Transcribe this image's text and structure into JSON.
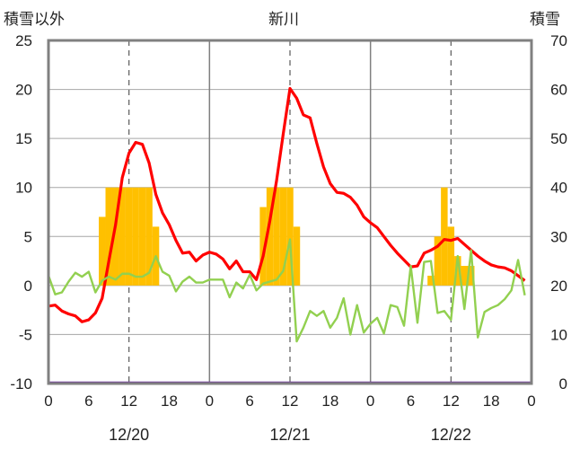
{
  "chart_data": {
    "type": "bar+line",
    "title": "新川",
    "ylabel_left": "積雪以外",
    "ylabel_right": "積雪",
    "ylim_left": [
      -10,
      25
    ],
    "ylim_right": [
      0,
      70
    ],
    "yticks_left": [
      "-10",
      "-5",
      "0",
      "5",
      "10",
      "15",
      "20",
      "25"
    ],
    "yticks_right": [
      "0",
      "10",
      "20",
      "30",
      "40",
      "50",
      "60",
      "70"
    ],
    "x_hour_range": [
      0,
      72
    ],
    "xtick_hours": [
      0,
      6,
      12,
      18,
      24,
      30,
      36,
      42,
      48,
      54,
      60,
      66,
      72
    ],
    "xtick_labels": [
      "0",
      "6",
      "12",
      "18",
      "0",
      "6",
      "12",
      "18",
      "0",
      "6",
      "12",
      "18",
      "0"
    ],
    "day_dividers": [
      24,
      48
    ],
    "noon_dashed": [
      12,
      36,
      60
    ],
    "date_labels": [
      {
        "hour": 12,
        "text": "12/20"
      },
      {
        "hour": 36,
        "text": "12/21"
      },
      {
        "hour": 60,
        "text": "12/22"
      }
    ],
    "colors": {
      "bars": "#ffc000",
      "red_line": "#ff0000",
      "green_line": "#92d050",
      "bottom_line": "#7030a0",
      "frame": "#808080"
    },
    "bars": [
      {
        "hour": 8,
        "value": 7
      },
      {
        "hour": 9,
        "value": 10
      },
      {
        "hour": 10,
        "value": 10
      },
      {
        "hour": 11,
        "value": 10
      },
      {
        "hour": 12,
        "value": 10
      },
      {
        "hour": 13,
        "value": 10
      },
      {
        "hour": 14,
        "value": 10
      },
      {
        "hour": 15,
        "value": 10
      },
      {
        "hour": 16,
        "value": 6
      },
      {
        "hour": 32,
        "value": 8
      },
      {
        "hour": 33,
        "value": 10
      },
      {
        "hour": 34,
        "value": 10
      },
      {
        "hour": 35,
        "value": 10
      },
      {
        "hour": 36,
        "value": 10
      },
      {
        "hour": 37,
        "value": 6
      },
      {
        "hour": 57,
        "value": 1
      },
      {
        "hour": 58,
        "value": 5
      },
      {
        "hour": 59,
        "value": 10
      },
      {
        "hour": 60,
        "value": 6
      },
      {
        "hour": 61,
        "value": 3
      },
      {
        "hour": 62,
        "value": 2
      },
      {
        "hour": 63,
        "value": 2
      }
    ],
    "series": [
      {
        "color": "#ff0000",
        "x": [
          0,
          1,
          2,
          3,
          4,
          5,
          6,
          7,
          8,
          9,
          10,
          11,
          12,
          13,
          14,
          15,
          16,
          17,
          18,
          19,
          20,
          21,
          22,
          23,
          24,
          25,
          26,
          27,
          28,
          29,
          30,
          31,
          32,
          33,
          34,
          35,
          36,
          37,
          38,
          39,
          40,
          41,
          42,
          43,
          44,
          45,
          46,
          47,
          48,
          49,
          50,
          51,
          52,
          53,
          54,
          55,
          56,
          57,
          58,
          59,
          60,
          61,
          62,
          63,
          64,
          65,
          66,
          67,
          68,
          69,
          70,
          71
        ],
        "y": [
          -2.1,
          -2.0,
          -2.6,
          -2.9,
          -3.1,
          -3.7,
          -3.5,
          -2.8,
          -1.3,
          2.5,
          6.2,
          11.0,
          13.5,
          14.6,
          14.4,
          12.5,
          9.3,
          7.4,
          6.2,
          4.6,
          3.3,
          3.4,
          2.5,
          3.1,
          3.4,
          3.2,
          2.7,
          1.7,
          2.5,
          1.4,
          1.4,
          0.6,
          3.0,
          6.6,
          10.7,
          15.5,
          20.1,
          19.1,
          17.4,
          17.1,
          14.5,
          12.1,
          10.4,
          9.5,
          9.4,
          9.0,
          8.2,
          7.0,
          6.4,
          5.9,
          5.0,
          4.1,
          3.3,
          2.6,
          1.9,
          2.0,
          3.3,
          3.6,
          4.0,
          4.7,
          4.6,
          4.8,
          4.2,
          3.6,
          3.0,
          2.5,
          2.1,
          1.9,
          1.8,
          1.5,
          1.0,
          0.5
        ]
      },
      {
        "color": "#92d050",
        "x": [
          0,
          1,
          2,
          3,
          4,
          5,
          6,
          7,
          8,
          9,
          10,
          11,
          12,
          13,
          14,
          15,
          16,
          17,
          18,
          19,
          20,
          21,
          22,
          23,
          24,
          25,
          26,
          27,
          28,
          29,
          30,
          31,
          32,
          33,
          34,
          35,
          36,
          37,
          38,
          39,
          40,
          41,
          42,
          43,
          44,
          45,
          46,
          47,
          48,
          49,
          50,
          51,
          52,
          53,
          54,
          55,
          56,
          57,
          58,
          59,
          60,
          61,
          62,
          63,
          64,
          65,
          66,
          67,
          68,
          69,
          70,
          71
        ],
        "y": [
          1.0,
          -0.9,
          -0.7,
          0.4,
          1.3,
          0.9,
          1.4,
          -0.7,
          0.5,
          0.9,
          0.6,
          1.2,
          1.2,
          0.9,
          0.9,
          1.3,
          3.0,
          1.4,
          1.0,
          -0.6,
          0.4,
          0.9,
          0.3,
          0.3,
          0.6,
          0.6,
          0.6,
          -1.2,
          0.3,
          -0.3,
          1.1,
          -0.5,
          0.2,
          0.4,
          0.6,
          1.5,
          4.7,
          -5.7,
          -4.3,
          -2.6,
          -3.1,
          -2.6,
          -4.3,
          -3.3,
          -1.3,
          -5.0,
          -2.0,
          -4.8,
          -3.9,
          -3.3,
          -4.9,
          -2.0,
          -2.2,
          -4.1,
          2.0,
          -3.8,
          2.4,
          2.5,
          -2.8,
          -2.6,
          -3.5,
          3.0,
          -2.4,
          3.6,
          -5.3,
          -2.7,
          -2.3,
          -2.0,
          -1.4,
          -0.5,
          2.6,
          -1.0
        ]
      }
    ],
    "purple_line_value": -10
  }
}
